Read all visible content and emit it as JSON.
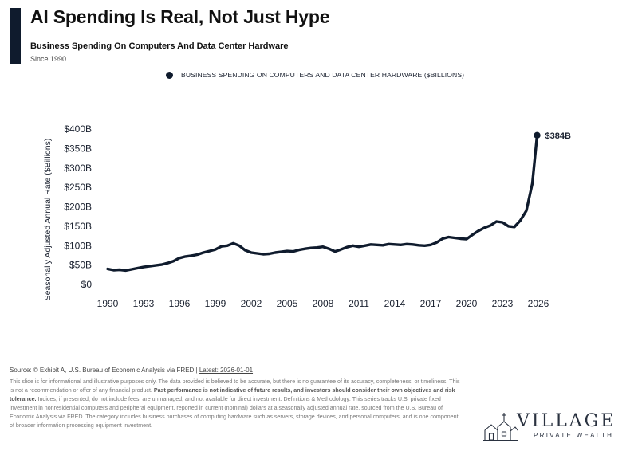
{
  "header": {
    "title": "AI Spending Is Real, Not Just Hype",
    "subtitle": "Business Spending On Computers And Data Center Hardware",
    "since": "Since 1990"
  },
  "legend": {
    "label": "BUSINESS SPENDING ON COMPUTERS AND DATA CENTER HARDWARE ($BILLIONS)"
  },
  "chart_data": {
    "type": "line",
    "title": "",
    "ylabel": "Seasonally Adjusted Annual Rate ($Billions)",
    "xlabel": "",
    "xlim": [
      1990,
      2026
    ],
    "ylim": [
      0,
      400
    ],
    "x_ticks": [
      1990,
      1993,
      1996,
      1999,
      2002,
      2005,
      2008,
      2011,
      2014,
      2017,
      2020,
      2023,
      2026
    ],
    "y_ticks": [
      0,
      50,
      100,
      150,
      200,
      250,
      300,
      350,
      400
    ],
    "y_tick_labels": [
      "$0",
      "$50B",
      "$100B",
      "$150B",
      "$200B",
      "$250B",
      "$300B",
      "$350B",
      "$400B"
    ],
    "grid": false,
    "series": [
      {
        "name": "BUSINESS SPENDING ON COMPUTERS AND DATA CENTER HARDWARE ($BILLIONS)",
        "color": "#0f1b2d",
        "points": [
          [
            1990.0,
            40
          ],
          [
            1990.5,
            37
          ],
          [
            1991.0,
            38
          ],
          [
            1991.5,
            36
          ],
          [
            1992.0,
            39
          ],
          [
            1992.5,
            42
          ],
          [
            1993.0,
            45
          ],
          [
            1993.5,
            47
          ],
          [
            1994.0,
            49
          ],
          [
            1994.5,
            51
          ],
          [
            1995.0,
            55
          ],
          [
            1995.5,
            60
          ],
          [
            1996.0,
            68
          ],
          [
            1996.5,
            72
          ],
          [
            1997.0,
            74
          ],
          [
            1997.5,
            77
          ],
          [
            1998.0,
            82
          ],
          [
            1998.5,
            86
          ],
          [
            1999.0,
            90
          ],
          [
            1999.5,
            98
          ],
          [
            2000.0,
            100
          ],
          [
            2000.5,
            106
          ],
          [
            2001.0,
            100
          ],
          [
            2001.5,
            88
          ],
          [
            2002.0,
            82
          ],
          [
            2002.5,
            80
          ],
          [
            2003.0,
            78
          ],
          [
            2003.5,
            79
          ],
          [
            2004.0,
            82
          ],
          [
            2004.5,
            84
          ],
          [
            2005.0,
            86
          ],
          [
            2005.5,
            85
          ],
          [
            2006.0,
            89
          ],
          [
            2006.5,
            92
          ],
          [
            2007.0,
            94
          ],
          [
            2007.5,
            95
          ],
          [
            2008.0,
            97
          ],
          [
            2008.5,
            92
          ],
          [
            2009.0,
            85
          ],
          [
            2009.5,
            90
          ],
          [
            2010.0,
            96
          ],
          [
            2010.5,
            100
          ],
          [
            2011.0,
            97
          ],
          [
            2011.5,
            100
          ],
          [
            2012.0,
            103
          ],
          [
            2012.5,
            102
          ],
          [
            2013.0,
            101
          ],
          [
            2013.5,
            104
          ],
          [
            2014.0,
            103
          ],
          [
            2014.5,
            102
          ],
          [
            2015.0,
            104
          ],
          [
            2015.5,
            103
          ],
          [
            2016.0,
            101
          ],
          [
            2016.5,
            100
          ],
          [
            2017.0,
            102
          ],
          [
            2017.5,
            108
          ],
          [
            2018.0,
            118
          ],
          [
            2018.5,
            122
          ],
          [
            2019.0,
            120
          ],
          [
            2019.5,
            118
          ],
          [
            2020.0,
            117
          ],
          [
            2020.5,
            128
          ],
          [
            2021.0,
            138
          ],
          [
            2021.5,
            146
          ],
          [
            2022.0,
            152
          ],
          [
            2022.5,
            162
          ],
          [
            2023.0,
            160
          ],
          [
            2023.5,
            150
          ],
          [
            2024.0,
            148
          ],
          [
            2024.5,
            165
          ],
          [
            2025.0,
            190
          ],
          [
            2025.5,
            260
          ],
          [
            2025.9,
            384
          ]
        ]
      }
    ],
    "annotations": [
      {
        "text": "$384B",
        "x": 2025.9,
        "y": 384
      }
    ]
  },
  "footer": {
    "source_prefix": "Source: © Exhibit A, U.S. Bureau of Economic Analysis via FRED | ",
    "source_latest": "Latest: 2026-01-01",
    "disclaimer_1": "This slide is for informational and illustrative purposes only. The data provided is believed to be accurate, but there is no guarantee of its accuracy, completeness, or timeliness. This is not a recommendation or offer of any financial product. ",
    "disclaimer_bold": "Past performance is not indicative of future results, and investors should consider their own objectives and risk tolerance.",
    "disclaimer_2": " Indices, if presented, do not include fees, are unmanaged, and not available for direct investment. Definitions & Methodology: This series tracks U.S. private fixed investment in nonresidential computers and peripheral equipment, reported in current (nominal) dollars at a seasonally adjusted annual rate, sourced from the U.S. Bureau of Economic Analysis via FRED. The category includes business purchases of computing hardware such as servers, storage devices, and personal computers, and is one component of broader information processing equipment investment."
  },
  "logo": {
    "name": "VILLAGE",
    "sub": "PRIVATE WEALTH"
  }
}
